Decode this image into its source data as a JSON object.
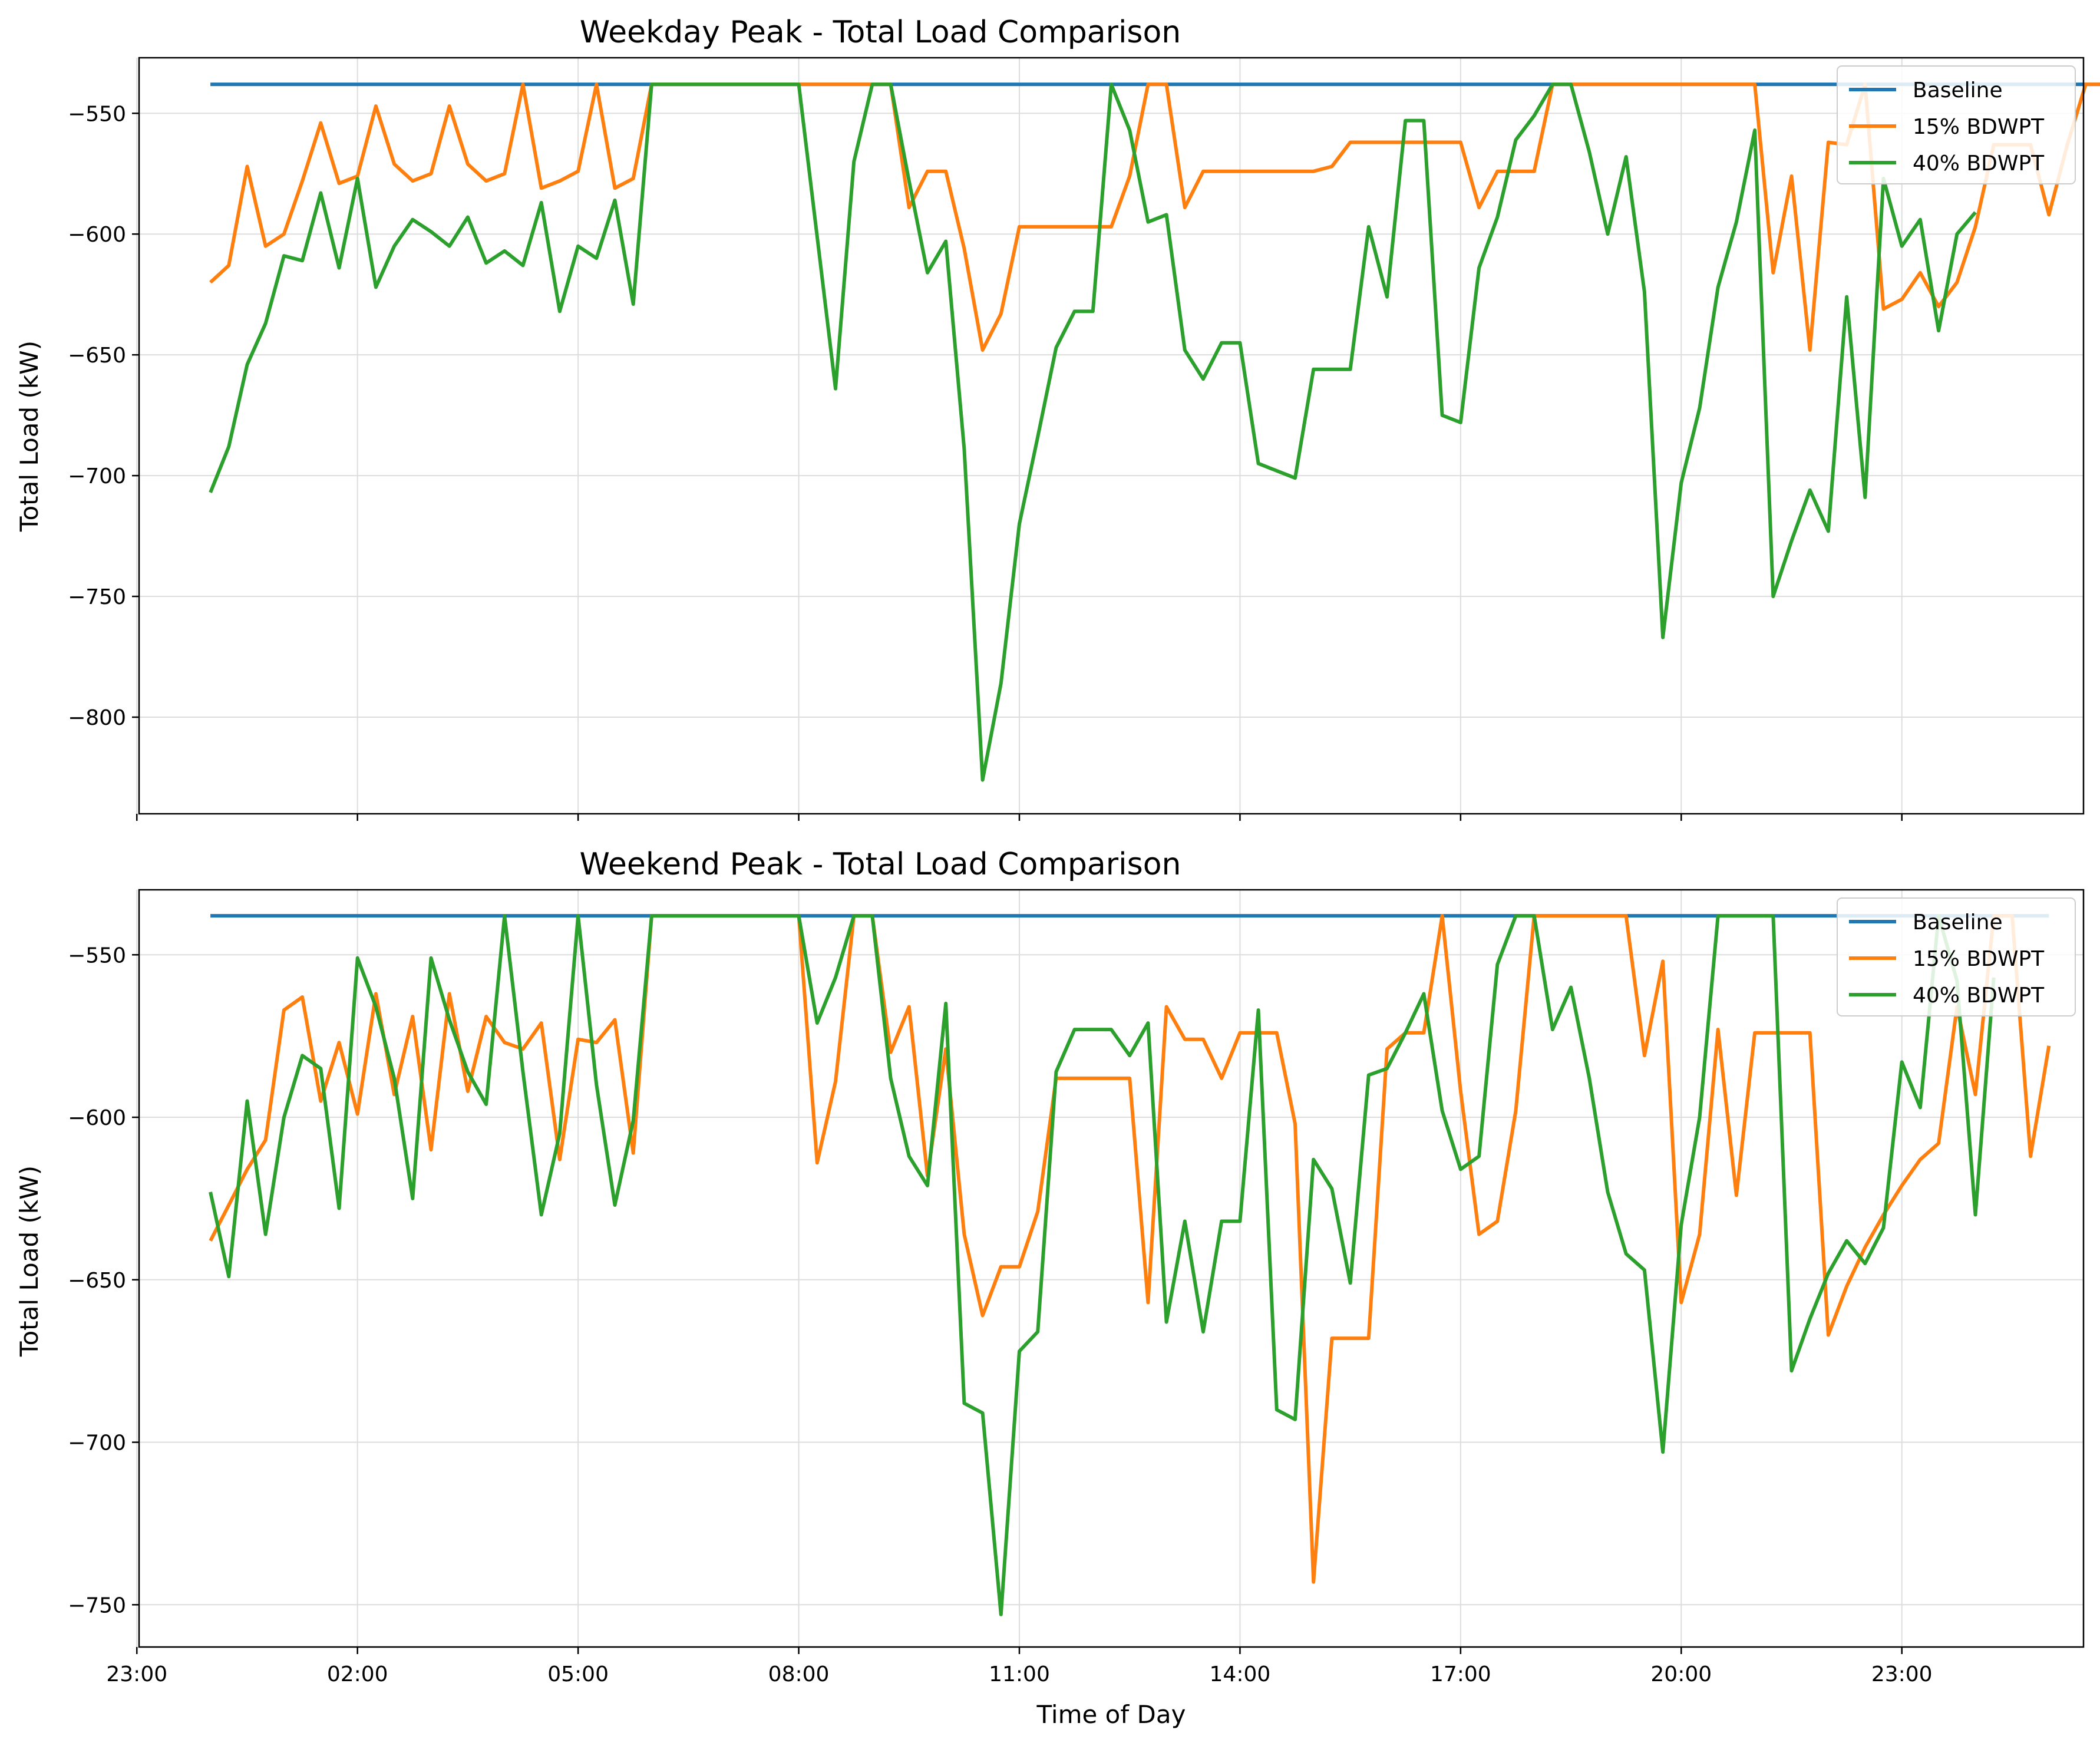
{
  "colors": {
    "baseline": "#1f77b4",
    "bdwpt15": "#ff7f0e",
    "bdwpt40": "#2ca02c",
    "grid": "#dddddd",
    "axes": "#000000"
  },
  "chart_data": [
    {
      "type": "line",
      "title": "Weekday Peak - Total Load Comparison",
      "ylabel": "Total Load (kW)",
      "xlabel": "",
      "ylim": [
        -840,
        -527
      ],
      "xlim": [
        -0.97,
        25.47
      ],
      "yticks": [
        -550,
        -600,
        -650,
        -700,
        -750,
        -800
      ],
      "ytick_labels": [
        "−550",
        "−600",
        "−650",
        "−700",
        "−750",
        "−800"
      ],
      "xticks": [
        -1,
        2,
        5,
        8,
        11,
        14,
        17,
        20,
        23
      ],
      "xtick_labels": [],
      "grid": true,
      "legend": "top-right",
      "x_start": 0,
      "x_step": 0.25,
      "series": [
        {
          "name": "Baseline",
          "key": "baseline",
          "values": [
            -538,
            -538
          ]
        },
        {
          "name": "15% BDWPT",
          "key": "bdwpt15",
          "values": [
            -620,
            -613,
            -572,
            -605,
            -600,
            -578,
            -554,
            -579,
            -576,
            -547,
            -571,
            -578,
            -575,
            -547,
            -571,
            -578,
            -575,
            -538,
            -581,
            -578,
            -574,
            -538,
            -581,
            -577,
            -538,
            -538,
            -538,
            -538,
            -538,
            -538,
            -538,
            -538,
            -538,
            -538,
            -538,
            -538,
            -538,
            -538,
            -589,
            -574,
            -574,
            -606,
            -648,
            -633,
            -597,
            -597,
            -597,
            -597,
            -597,
            -597,
            -576,
            -538,
            -538,
            -589,
            -574,
            -574,
            -574,
            -574,
            -574,
            -574,
            -574,
            -572,
            -562,
            -562,
            -562,
            -562,
            -562,
            -562,
            -562,
            -589,
            -574,
            -574,
            -574,
            -538,
            -538,
            -538,
            -538,
            -538,
            -538,
            -538,
            -538,
            -538,
            -538,
            -538,
            -538,
            -616,
            -576,
            -648,
            -562,
            -563,
            -538,
            -631,
            -627,
            -616,
            -630,
            -620,
            -597,
            -563,
            -563,
            -563,
            -592,
            -563,
            -538,
            -538
          ]
        },
        {
          "name": "40% BDWPT",
          "key": "bdwpt40",
          "values": [
            -707,
            -688,
            -654,
            -637,
            -609,
            -611,
            -583,
            -614,
            -577,
            -622,
            -605,
            -594,
            -599,
            -605,
            -593,
            -612,
            -607,
            -613,
            -587,
            -632,
            -605,
            -610,
            -586,
            -629,
            -538,
            -538,
            -538,
            -538,
            -538,
            -538,
            -538,
            -538,
            -538,
            -601,
            -664,
            -570,
            -538,
            -538,
            -578,
            -616,
            -603,
            -689,
            -826,
            -786,
            -720,
            -684,
            -647,
            -632,
            -632,
            -538,
            -557,
            -595,
            -592,
            -648,
            -660,
            -645,
            -645,
            -695,
            -698,
            -701,
            -656,
            -656,
            -656,
            -597,
            -626,
            -553,
            -553,
            -675,
            -678,
            -614,
            -593,
            -561,
            -551,
            -538,
            -538,
            -566,
            -600,
            -568,
            -624,
            -767,
            -703,
            -672,
            -622,
            -595,
            -557,
            -750,
            -727,
            -706,
            -723,
            -626,
            -709,
            -577,
            -605,
            -594,
            -640,
            -600,
            -591
          ]
        }
      ]
    },
    {
      "type": "line",
      "title": "Weekend Peak - Total Load Comparison",
      "ylabel": "Total Load (kW)",
      "xlabel": "Time of Day",
      "ylim": [
        -763,
        -530
      ],
      "xlim": [
        -0.97,
        25.47
      ],
      "yticks": [
        -550,
        -600,
        -650,
        -700,
        -750
      ],
      "ytick_labels": [
        "−550",
        "−600",
        "−650",
        "−700",
        "−750"
      ],
      "xticks": [
        -1,
        2,
        5,
        8,
        11,
        14,
        17,
        20,
        23
      ],
      "xtick_labels": [
        "23:00",
        "02:00",
        "05:00",
        "08:00",
        "11:00",
        "14:00",
        "17:00",
        "20:00",
        "23:00"
      ],
      "grid": true,
      "legend": "top-right",
      "x_start": 0,
      "x_step": 0.25,
      "series": [
        {
          "name": "Baseline",
          "key": "baseline",
          "values": [
            -538,
            -538
          ]
        },
        {
          "name": "15% BDWPT",
          "key": "bdwpt15",
          "values": [
            -638,
            -627,
            -616,
            -607,
            -567,
            -563,
            -595,
            -577,
            -599,
            -562,
            -593,
            -569,
            -610,
            -562,
            -592,
            -569,
            -577,
            -579,
            -571,
            -613,
            -576,
            -577,
            -570,
            -611,
            -538,
            -538,
            -538,
            -538,
            -538,
            -538,
            -538,
            -538,
            -538,
            -614,
            -589,
            -538,
            -538,
            -580,
            -566,
            -618,
            -579,
            -636,
            -661,
            -646,
            -646,
            -629,
            -588,
            -588,
            -588,
            -588,
            -588,
            -657,
            -566,
            -576,
            -576,
            -588,
            -574,
            -574,
            -574,
            -602,
            -743,
            -668,
            -668,
            -668,
            -579,
            -574,
            -574,
            -538,
            -592,
            -636,
            -632,
            -598,
            -538,
            -538,
            -538,
            -538,
            -538,
            -538,
            -581,
            -552,
            -657,
            -636,
            -573,
            -624,
            -574,
            -574,
            -574,
            -574,
            -667,
            -652,
            -640,
            -630,
            -621,
            -613,
            -608,
            -566,
            -593,
            -538,
            -538,
            -612,
            -578
          ]
        },
        {
          "name": "40% BDWPT",
          "key": "bdwpt40",
          "values": [
            -623,
            -649,
            -595,
            -636,
            -600,
            -581,
            -585,
            -628,
            -551,
            -566,
            -588,
            -625,
            -551,
            -570,
            -586,
            -596,
            -538,
            -586,
            -630,
            -605,
            -538,
            -590,
            -627,
            -601,
            -538,
            -538,
            -538,
            -538,
            -538,
            -538,
            -538,
            -538,
            -538,
            -571,
            -557,
            -538,
            -538,
            -588,
            -612,
            -621,
            -565,
            -688,
            -691,
            -753,
            -672,
            -666,
            -586,
            -573,
            -573,
            -573,
            -581,
            -571,
            -663,
            -632,
            -666,
            -632,
            -632,
            -567,
            -690,
            -693,
            -613,
            -622,
            -651,
            -587,
            -585,
            -574,
            -562,
            -598,
            -616,
            -612,
            -553,
            -538,
            -538,
            -573,
            -560,
            -588,
            -623,
            -642,
            -647,
            -703,
            -633,
            -600,
            -538,
            -538,
            -538,
            -538,
            -678,
            -662,
            -648,
            -638,
            -645,
            -634,
            -583,
            -597,
            -538,
            -558,
            -630,
            -557
          ]
        }
      ]
    }
  ]
}
